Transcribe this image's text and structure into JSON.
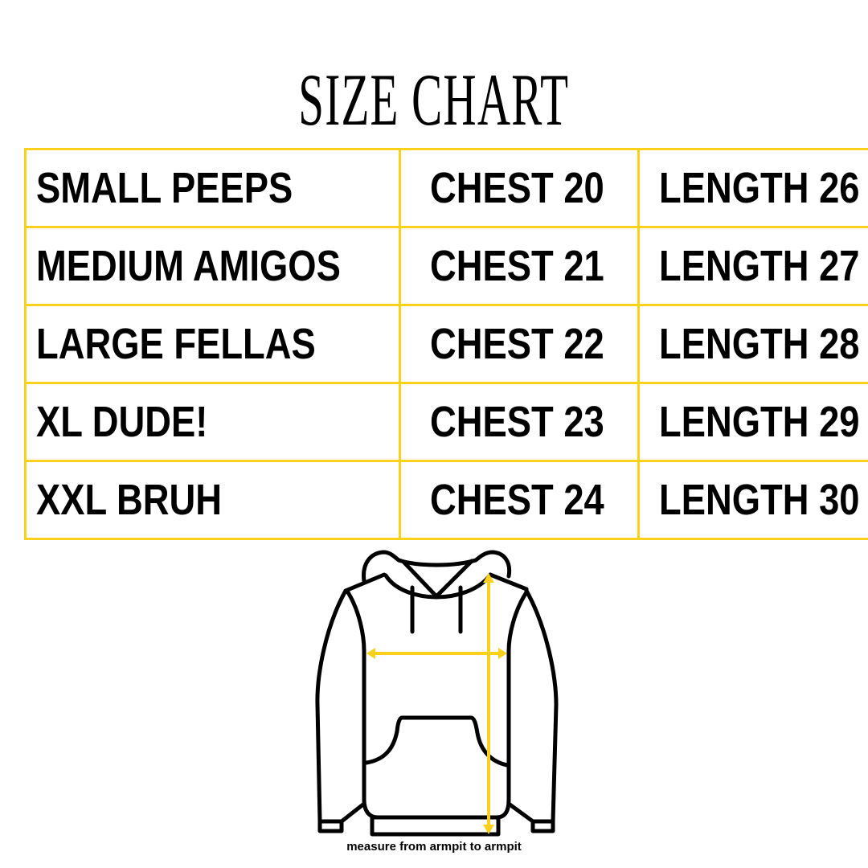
{
  "title": "SIZE CHART",
  "colors": {
    "border": "#f9d01a",
    "arrow": "#f9d01a",
    "text": "#000000"
  },
  "rows": [
    {
      "size": "SMALL PEEPS",
      "chest": "CHEST 20",
      "length": "LENGTH 26"
    },
    {
      "size": "MEDIUM AMIGOS",
      "chest": "CHEST 21",
      "length": "LENGTH 27"
    },
    {
      "size": "LARGE FELLAS",
      "chest": "CHEST 22",
      "length": "LENGTH 28"
    },
    {
      "size": "XL DUDE!",
      "chest": "CHEST 23",
      "length": "LENGTH 29"
    },
    {
      "size": "XXL BRUH",
      "chest": "CHEST 24",
      "length": "LENGTH 30"
    }
  ],
  "illustration": {
    "icon": "hoodie-icon",
    "caption": "measure from armpit to armpit"
  }
}
